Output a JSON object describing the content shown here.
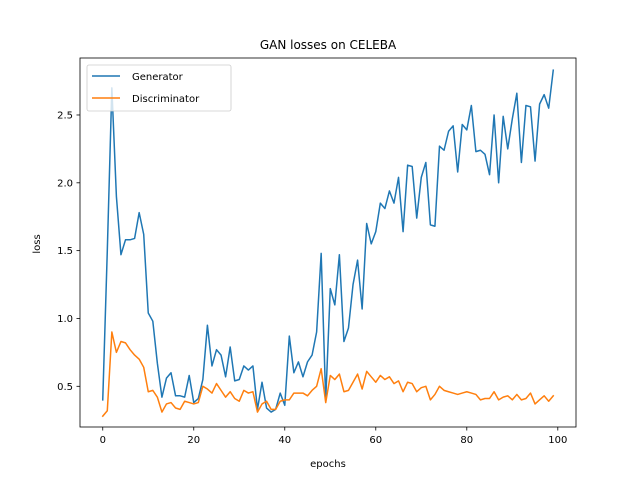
{
  "chart_data": {
    "type": "line",
    "title": "GAN losses on CELEBA",
    "xlabel": "epochs",
    "ylabel": "loss",
    "xlim": [
      -5,
      104
    ],
    "ylim": [
      0.2,
      2.92
    ],
    "xticks": [
      0,
      20,
      40,
      60,
      80,
      100
    ],
    "yticks": [
      0.5,
      1.0,
      1.5,
      2.0,
      2.5
    ],
    "grid": false,
    "legend_position": "upper left",
    "series": [
      {
        "name": "Generator",
        "color": "#1f77b4",
        "values": [
          0.4,
          1.5,
          2.7,
          1.9,
          1.47,
          1.58,
          1.58,
          1.59,
          1.78,
          1.62,
          1.04,
          0.98,
          0.67,
          0.42,
          0.56,
          0.6,
          0.43,
          0.43,
          0.42,
          0.58,
          0.38,
          0.41,
          0.55,
          0.95,
          0.65,
          0.77,
          0.73,
          0.57,
          0.79,
          0.54,
          0.55,
          0.65,
          0.62,
          0.65,
          0.33,
          0.53,
          0.34,
          0.31,
          0.33,
          0.45,
          0.36,
          0.87,
          0.6,
          0.68,
          0.57,
          0.68,
          0.73,
          0.9,
          1.48,
          0.4,
          1.22,
          1.1,
          1.47,
          0.83,
          0.93,
          1.25,
          1.43,
          1.07,
          1.7,
          1.55,
          1.64,
          1.85,
          1.81,
          1.94,
          1.85,
          2.04,
          1.64,
          2.13,
          2.12,
          1.74,
          2.04,
          2.15,
          1.69,
          1.68,
          2.27,
          2.24,
          2.38,
          2.42,
          2.08,
          2.43,
          2.39,
          2.57,
          2.23,
          2.24,
          2.21,
          2.06,
          2.5,
          2.0,
          2.49,
          2.25,
          2.47,
          2.66,
          2.15,
          2.57,
          2.56,
          2.16,
          2.58,
          2.65,
          2.55,
          2.83
        ]
      },
      {
        "name": "Discriminator",
        "color": "#ff7f0e",
        "values": [
          0.28,
          0.32,
          0.9,
          0.75,
          0.83,
          0.82,
          0.77,
          0.73,
          0.7,
          0.64,
          0.46,
          0.47,
          0.42,
          0.31,
          0.37,
          0.38,
          0.34,
          0.33,
          0.39,
          0.38,
          0.37,
          0.38,
          0.5,
          0.48,
          0.45,
          0.52,
          0.47,
          0.42,
          0.46,
          0.41,
          0.39,
          0.47,
          0.45,
          0.46,
          0.31,
          0.37,
          0.39,
          0.33,
          0.33,
          0.39,
          0.4,
          0.4,
          0.45,
          0.45,
          0.45,
          0.43,
          0.47,
          0.5,
          0.63,
          0.38,
          0.58,
          0.55,
          0.59,
          0.46,
          0.47,
          0.53,
          0.59,
          0.48,
          0.61,
          0.57,
          0.53,
          0.58,
          0.55,
          0.57,
          0.52,
          0.54,
          0.46,
          0.53,
          0.52,
          0.46,
          0.49,
          0.5,
          0.4,
          0.44,
          0.5,
          0.47,
          0.46,
          0.45,
          0.44,
          0.45,
          0.46,
          0.45,
          0.44,
          0.4,
          0.41,
          0.41,
          0.46,
          0.4,
          0.42,
          0.43,
          0.4,
          0.44,
          0.4,
          0.41,
          0.45,
          0.37,
          0.4,
          0.43,
          0.39,
          0.43
        ]
      }
    ]
  }
}
